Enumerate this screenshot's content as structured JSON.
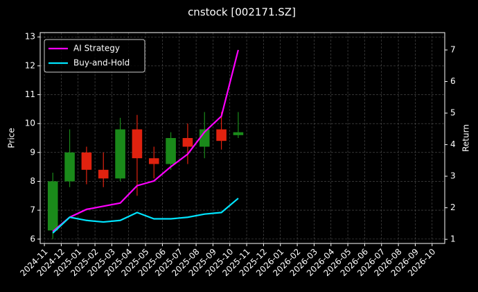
{
  "chart_data": {
    "type": "candlestick",
    "title": "cnstock [002171.SZ]",
    "ylabel": "Price",
    "y2label": "Return",
    "x": [
      "2024-11",
      "2024-12",
      "2025-01",
      "2025-02",
      "2025-03",
      "2025-04",
      "2025-05",
      "2025-06",
      "2025-07",
      "2025-08",
      "2025-09",
      "2025-10"
    ],
    "open": [
      6.3,
      8.0,
      9.0,
      8.4,
      8.1,
      9.8,
      8.8,
      8.6,
      9.5,
      9.2,
      9.8,
      9.6
    ],
    "high": [
      8.3,
      9.8,
      9.2,
      9.0,
      10.2,
      10.3,
      9.2,
      9.7,
      10.0,
      10.4,
      10.4,
      10.4
    ],
    "low": [
      6.0,
      7.8,
      7.9,
      7.8,
      8.0,
      7.5,
      8.1,
      8.4,
      8.6,
      8.8,
      9.1,
      9.5
    ],
    "close": [
      8.0,
      9.0,
      8.4,
      8.1,
      9.8,
      8.8,
      8.6,
      9.5,
      9.2,
      9.8,
      9.4,
      9.7
    ],
    "up_color": "#1a8a1a",
    "down_color": "#e0220f",
    "series": [
      {
        "name": "AI Strategy",
        "color": "#ff00ff",
        "axis": "y2",
        "values": [
          1.25,
          1.7,
          1.95,
          2.05,
          2.15,
          2.7,
          2.85,
          3.3,
          3.7,
          4.4,
          4.9,
          7.0
        ]
      },
      {
        "name": "Buy-and-Hold",
        "color": "#00e5ff",
        "axis": "y2",
        "values": [
          1.2,
          1.7,
          1.6,
          1.55,
          1.6,
          1.85,
          1.65,
          1.65,
          1.7,
          1.8,
          1.85,
          2.3
        ]
      }
    ],
    "xticks": [
      "2024-11",
      "2024-12",
      "2025-01",
      "2025-02",
      "2025-03",
      "2025-04",
      "2025-05",
      "2025-06",
      "2025-07",
      "2025-08",
      "2025-09",
      "2025-10",
      "2025-11",
      "2025-12",
      "2026-01",
      "2026-02",
      "2026-03",
      "2026-04",
      "2026-05",
      "2026-06",
      "2026-07",
      "2026-08",
      "2026-09",
      "2026-10"
    ],
    "ylim": [
      5.85,
      13.15
    ],
    "yticks": [
      6,
      7,
      8,
      9,
      10,
      11,
      12,
      13
    ],
    "y2lim": [
      0.87,
      7.55
    ],
    "y2ticks": [
      1,
      2,
      3,
      4,
      5,
      6,
      7
    ],
    "grid": true,
    "legend": "upper left"
  }
}
